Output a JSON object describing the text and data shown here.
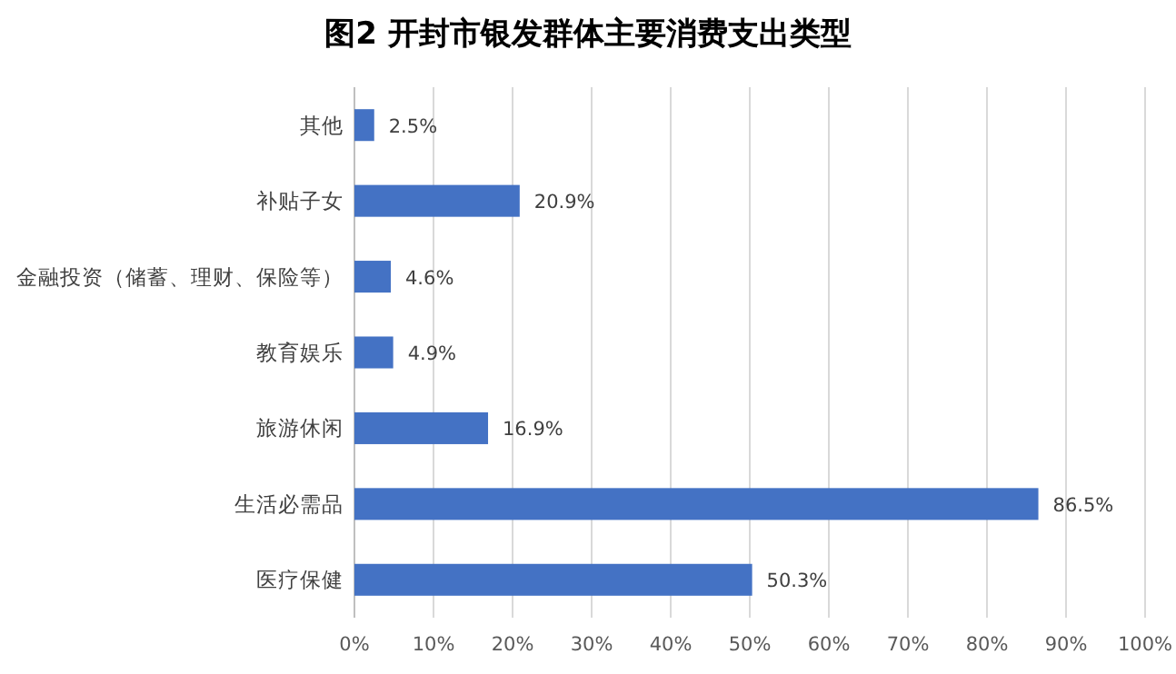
{
  "chart_data": {
    "type": "bar",
    "orientation": "horizontal",
    "title": "图2  开封市银发群体主要消费支出类型",
    "categories": [
      "其他",
      "补贴子女",
      "金融投资（储蓄、理财、保险等）",
      "教育娱乐",
      "旅游休闲",
      "生活必需品",
      "医疗保健"
    ],
    "values": [
      2.5,
      20.9,
      4.6,
      4.9,
      16.9,
      86.5,
      50.3
    ],
    "value_labels": [
      "2.5%",
      "20.9%",
      "4.6%",
      "4.9%",
      "16.9%",
      "86.5%",
      "50.3%"
    ],
    "color": "#4472c4",
    "xlim": [
      0,
      100
    ],
    "xticks": [
      {
        "value": 0,
        "label": "0%"
      },
      {
        "value": 10,
        "label": "10%"
      },
      {
        "value": 20,
        "label": "20%"
      },
      {
        "value": 30,
        "label": "30%"
      },
      {
        "value": 40,
        "label": "40%"
      },
      {
        "value": 50,
        "label": "50%"
      },
      {
        "value": 60,
        "label": "60%"
      },
      {
        "value": 70,
        "label": "70%"
      },
      {
        "value": 80,
        "label": "80%"
      },
      {
        "value": 90,
        "label": "90%"
      },
      {
        "value": 100,
        "label": "100%"
      }
    ],
    "grid": "x"
  }
}
